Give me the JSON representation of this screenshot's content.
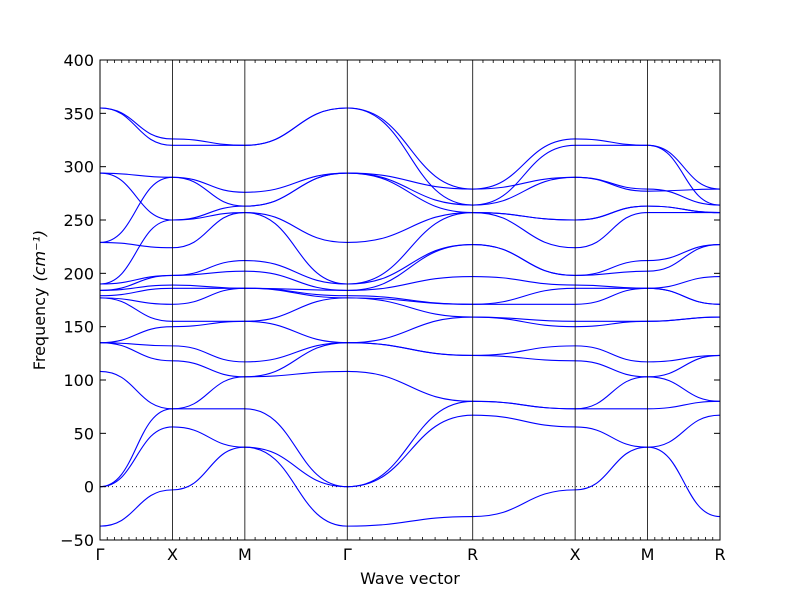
{
  "chart_data": {
    "type": "line",
    "xlabel": "Wave vector",
    "ylabel": "Frequency",
    "ylabel_unit": "(cm⁻¹)",
    "ylim": [
      -50,
      400
    ],
    "yticks": [
      -50,
      0,
      50,
      100,
      150,
      200,
      250,
      300,
      350,
      400
    ],
    "x_symmetry_points": [
      "Γ",
      "X",
      "M",
      "Γ",
      "R",
      "X",
      "M",
      "R"
    ],
    "x_symmetry_positions": [
      0,
      0.5,
      1.0,
      1.707,
      2.573,
      3.28,
      3.78,
      4.28
    ],
    "zero_line": {
      "value": 0,
      "style": "dotted"
    },
    "line_color": "#0000ff",
    "grid": false,
    "series": [
      {
        "points": [
          [
            0,
            294
          ],
          [
            0.5,
            290
          ],
          [
            1.0,
            276
          ],
          [
            1.707,
            294
          ],
          [
            2.573,
            279
          ],
          [
            3.28,
            290
          ],
          [
            3.78,
            277
          ],
          [
            4.28,
            279
          ]
        ]
      },
      {
        "points": [
          [
            0,
            355
          ],
          [
            0.5,
            326
          ],
          [
            1.0,
            320
          ],
          [
            1.707,
            355
          ],
          [
            2.573,
            279
          ],
          [
            3.28,
            326
          ],
          [
            3.78,
            320
          ],
          [
            4.28,
            279
          ]
        ]
      },
      {
        "points": [
          [
            0,
            355
          ],
          [
            0.5,
            320
          ],
          [
            1.0,
            320
          ],
          [
            1.707,
            355
          ],
          [
            2.573,
            264
          ],
          [
            3.28,
            320
          ],
          [
            3.78,
            320
          ],
          [
            4.28,
            264
          ]
        ]
      },
      {
        "points": [
          [
            0,
            294
          ],
          [
            0.5,
            250
          ],
          [
            1.0,
            263
          ],
          [
            1.707,
            294
          ],
          [
            2.573,
            264
          ],
          [
            3.28,
            290
          ],
          [
            3.78,
            279
          ],
          [
            4.28,
            264
          ]
        ]
      },
      {
        "points": [
          [
            0,
            229
          ],
          [
            0.5,
            290
          ],
          [
            1.0,
            263
          ],
          [
            1.707,
            294
          ],
          [
            2.573,
            257
          ],
          [
            3.28,
            250
          ],
          [
            3.78,
            263
          ],
          [
            4.28,
            257
          ]
        ]
      },
      {
        "points": [
          [
            0,
            229
          ],
          [
            0.5,
            224
          ],
          [
            1.0,
            257
          ],
          [
            1.707,
            229
          ],
          [
            2.573,
            257
          ],
          [
            3.28,
            250
          ],
          [
            3.78,
            263
          ],
          [
            4.28,
            257
          ]
        ]
      },
      {
        "points": [
          [
            0,
            190
          ],
          [
            0.5,
            250
          ],
          [
            1.0,
            257
          ],
          [
            1.707,
            190
          ],
          [
            2.573,
            257
          ],
          [
            3.28,
            224
          ],
          [
            3.78,
            257
          ],
          [
            4.28,
            257
          ]
        ]
      },
      {
        "points": [
          [
            0,
            190
          ],
          [
            0.5,
            198
          ],
          [
            1.0,
            212
          ],
          [
            1.707,
            190
          ],
          [
            2.573,
            227
          ],
          [
            3.28,
            198
          ],
          [
            3.78,
            212
          ],
          [
            4.28,
            227
          ]
        ]
      },
      {
        "points": [
          [
            0,
            184
          ],
          [
            0.5,
            198
          ],
          [
            1.0,
            202
          ],
          [
            1.707,
            184
          ],
          [
            2.573,
            227
          ],
          [
            3.28,
            198
          ],
          [
            3.78,
            202
          ],
          [
            4.28,
            227
          ]
        ]
      },
      {
        "points": [
          [
            0,
            184
          ],
          [
            0.5,
            189
          ],
          [
            1.0,
            186
          ],
          [
            1.707,
            184
          ],
          [
            2.573,
            197
          ],
          [
            3.28,
            189
          ],
          [
            3.78,
            186
          ],
          [
            4.28,
            197
          ]
        ]
      },
      {
        "points": [
          [
            0,
            179
          ],
          [
            0.5,
            186
          ],
          [
            1.0,
            186
          ],
          [
            1.707,
            179
          ],
          [
            2.573,
            171
          ],
          [
            3.28,
            186
          ],
          [
            3.78,
            186
          ],
          [
            4.28,
            171
          ]
        ]
      },
      {
        "points": [
          [
            0,
            177
          ],
          [
            0.5,
            171
          ],
          [
            1.0,
            186
          ],
          [
            1.707,
            177
          ],
          [
            2.573,
            171
          ],
          [
            3.28,
            171
          ],
          [
            3.78,
            186
          ],
          [
            4.28,
            171
          ]
        ]
      },
      {
        "points": [
          [
            0,
            177
          ],
          [
            0.5,
            155
          ],
          [
            1.0,
            155
          ],
          [
            1.707,
            177
          ],
          [
            2.573,
            159
          ],
          [
            3.28,
            155
          ],
          [
            3.78,
            155
          ],
          [
            4.28,
            159
          ]
        ]
      },
      {
        "points": [
          [
            0,
            135
          ],
          [
            0.5,
            150
          ],
          [
            1.0,
            155
          ],
          [
            1.707,
            135
          ],
          [
            2.573,
            159
          ],
          [
            3.28,
            150
          ],
          [
            3.78,
            155
          ],
          [
            4.28,
            159
          ]
        ]
      },
      {
        "points": [
          [
            0,
            135
          ],
          [
            0.5,
            132
          ],
          [
            1.0,
            117
          ],
          [
            1.707,
            135
          ],
          [
            2.573,
            123
          ],
          [
            3.28,
            132
          ],
          [
            3.78,
            117
          ],
          [
            4.28,
            123
          ]
        ]
      },
      {
        "points": [
          [
            0,
            135
          ],
          [
            0.5,
            118
          ],
          [
            1.0,
            103
          ],
          [
            1.707,
            135
          ],
          [
            2.573,
            123
          ],
          [
            3.28,
            118
          ],
          [
            3.78,
            103
          ],
          [
            4.28,
            123
          ]
        ]
      },
      {
        "points": [
          [
            0,
            108
          ],
          [
            0.5,
            73
          ],
          [
            1.0,
            103
          ],
          [
            1.707,
            108
          ],
          [
            2.573,
            80
          ],
          [
            3.28,
            73
          ],
          [
            3.78,
            103
          ],
          [
            4.28,
            80
          ]
        ]
      },
      {
        "points": [
          [
            0,
            0
          ],
          [
            0.5,
            73
          ],
          [
            1.0,
            73
          ],
          [
            1.707,
            0
          ],
          [
            2.573,
            80
          ],
          [
            3.28,
            73
          ],
          [
            3.78,
            73
          ],
          [
            4.28,
            80
          ]
        ]
      },
      {
        "points": [
          [
            0,
            0
          ],
          [
            0.5,
            56
          ],
          [
            1.0,
            37
          ],
          [
            1.707,
            0
          ],
          [
            2.573,
            67
          ],
          [
            3.28,
            56
          ],
          [
            3.78,
            37
          ],
          [
            4.28,
            67
          ]
        ]
      },
      {
        "points": [
          [
            0,
            -37
          ],
          [
            0.5,
            -3
          ],
          [
            1.0,
            37
          ],
          [
            1.707,
            -37
          ],
          [
            2.573,
            -28
          ],
          [
            3.28,
            -3
          ],
          [
            3.78,
            37
          ],
          [
            4.28,
            -28
          ]
        ]
      }
    ]
  }
}
